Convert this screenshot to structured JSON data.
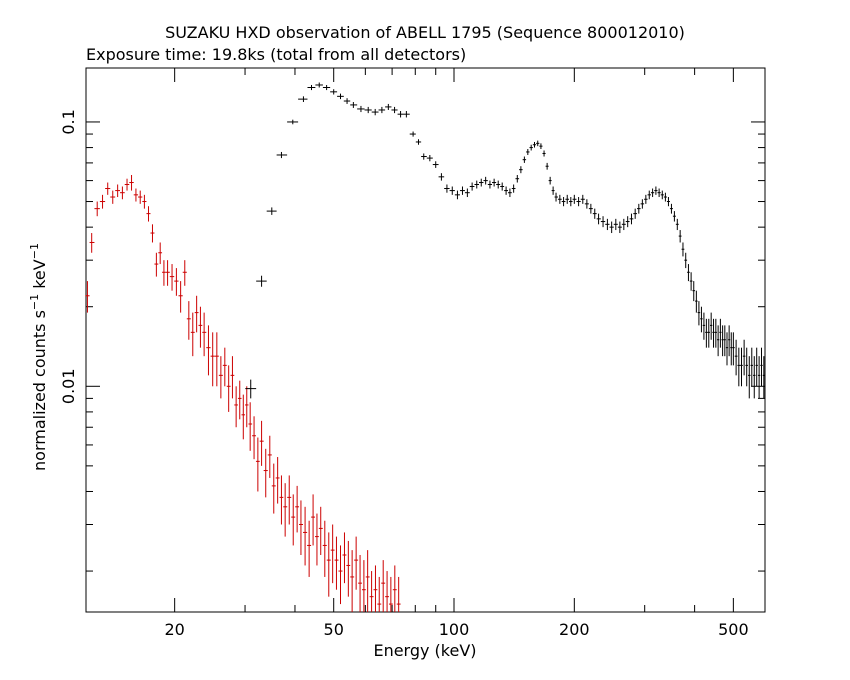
{
  "chart_data": {
    "type": "scatter",
    "title": "SUZAKU HXD observation of ABELL 1795 (Sequence 800012010)",
    "subtitle": "Exposure time: 19.8ks (total from all detectors)",
    "xlabel": "Energy (keV)",
    "ylabel_parts": [
      "normalized counts s",
      "−1",
      " keV",
      "−1"
    ],
    "x_scale": "log",
    "y_scale": "log",
    "xlim": [
      12,
      600
    ],
    "ylim": [
      0.0014,
      0.16
    ],
    "x_ticks": [
      {
        "value": 20,
        "label": "20"
      },
      {
        "value": 50,
        "label": "50"
      },
      {
        "value": 100,
        "label": "100"
      },
      {
        "value": 200,
        "label": "200"
      },
      {
        "value": 500,
        "label": "500"
      }
    ],
    "y_ticks": [
      {
        "value": 0.01,
        "label": "0.01"
      },
      {
        "value": 0.1,
        "label": "0.1"
      }
    ],
    "grid": false,
    "series": [
      {
        "color": "#cc0000",
        "points": [
          [
            12.1,
            0.022,
            0.003
          ],
          [
            12.4,
            0.035,
            0.003
          ],
          [
            12.8,
            0.047,
            0.003
          ],
          [
            13.2,
            0.05,
            0.003
          ],
          [
            13.6,
            0.056,
            0.003
          ],
          [
            14.0,
            0.052,
            0.003
          ],
          [
            14.4,
            0.055,
            0.003
          ],
          [
            14.8,
            0.054,
            0.003
          ],
          [
            15.2,
            0.058,
            0.003
          ],
          [
            15.6,
            0.059,
            0.004
          ],
          [
            16.0,
            0.053,
            0.003
          ],
          [
            16.4,
            0.052,
            0.003
          ],
          [
            16.8,
            0.05,
            0.003
          ],
          [
            17.2,
            0.045,
            0.003
          ],
          [
            17.6,
            0.038,
            0.003
          ],
          [
            18.0,
            0.029,
            0.003
          ],
          [
            18.4,
            0.032,
            0.003
          ],
          [
            18.8,
            0.027,
            0.003
          ],
          [
            19.2,
            0.027,
            0.003
          ],
          [
            19.7,
            0.026,
            0.003
          ],
          [
            20.2,
            0.025,
            0.003
          ],
          [
            20.7,
            0.022,
            0.003
          ],
          [
            21.2,
            0.027,
            0.003
          ],
          [
            21.7,
            0.018,
            0.003
          ],
          [
            22.2,
            0.016,
            0.003
          ],
          [
            22.7,
            0.019,
            0.003
          ],
          [
            23.2,
            0.017,
            0.003
          ],
          [
            23.7,
            0.016,
            0.003
          ],
          [
            24.3,
            0.014,
            0.003
          ],
          [
            24.9,
            0.013,
            0.003
          ],
          [
            25.5,
            0.013,
            0.003
          ],
          [
            26.1,
            0.011,
            0.002
          ],
          [
            26.7,
            0.012,
            0.002
          ],
          [
            27.3,
            0.01,
            0.002
          ],
          [
            27.9,
            0.011,
            0.002
          ],
          [
            28.5,
            0.0085,
            0.0015
          ],
          [
            29.1,
            0.009,
            0.0015
          ],
          [
            29.7,
            0.0078,
            0.0015
          ],
          [
            30.3,
            0.0085,
            0.0015
          ],
          [
            30.9,
            0.0072,
            0.0015
          ],
          [
            31.6,
            0.0065,
            0.0012
          ],
          [
            32.3,
            0.0052,
            0.0012
          ],
          [
            33.0,
            0.0062,
            0.0012
          ],
          [
            33.8,
            0.0048,
            0.001
          ],
          [
            34.6,
            0.0055,
            0.001
          ],
          [
            35.4,
            0.0042,
            0.0009
          ],
          [
            36.2,
            0.0045,
            0.0009
          ],
          [
            37.0,
            0.0038,
            0.0008
          ],
          [
            37.8,
            0.0035,
            0.0008
          ],
          [
            38.7,
            0.0038,
            0.0008
          ],
          [
            39.6,
            0.0032,
            0.0007
          ],
          [
            40.5,
            0.0035,
            0.0007
          ],
          [
            41.4,
            0.003,
            0.0007
          ],
          [
            42.4,
            0.0028,
            0.0007
          ],
          [
            43.4,
            0.0025,
            0.0006
          ],
          [
            44.4,
            0.0032,
            0.0007
          ],
          [
            45.4,
            0.0027,
            0.0006
          ],
          [
            46.4,
            0.0029,
            0.0006
          ],
          [
            47.5,
            0.0025,
            0.0006
          ],
          [
            48.6,
            0.0022,
            0.0006
          ],
          [
            49.7,
            0.0024,
            0.0006
          ],
          [
            50.8,
            0.0022,
            0.0005
          ],
          [
            52.0,
            0.002,
            0.0005
          ],
          [
            53.2,
            0.0023,
            0.0005
          ],
          [
            54.4,
            0.0021,
            0.0005
          ],
          [
            55.6,
            0.0019,
            0.0005
          ],
          [
            56.9,
            0.0022,
            0.0005
          ],
          [
            58.2,
            0.0018,
            0.0005
          ],
          [
            59.5,
            0.0017,
            0.0005
          ],
          [
            60.8,
            0.0019,
            0.0005
          ],
          [
            62.2,
            0.0016,
            0.0004
          ],
          [
            63.6,
            0.0017,
            0.0004
          ],
          [
            65.0,
            0.0015,
            0.0004
          ],
          [
            66.5,
            0.0018,
            0.0004
          ],
          [
            68.0,
            0.0016,
            0.0004
          ],
          [
            69.5,
            0.0015,
            0.0004
          ],
          [
            71.1,
            0.0017,
            0.0004
          ],
          [
            72.7,
            0.0015,
            0.0004
          ]
        ]
      },
      {
        "color": "#000000",
        "points": [
          [
            31.0,
            0.0098,
            0.0008
          ],
          [
            33.0,
            0.025,
            0.0012
          ],
          [
            35.0,
            0.046,
            0.0015
          ],
          [
            37.0,
            0.075,
            0.002
          ],
          [
            39.5,
            0.1,
            0.002
          ],
          [
            42.0,
            0.122,
            0.003
          ],
          [
            44.0,
            0.135,
            0.003
          ],
          [
            46.0,
            0.138,
            0.003
          ],
          [
            48.0,
            0.135,
            0.003
          ],
          [
            50.0,
            0.13,
            0.003
          ],
          [
            52.0,
            0.125,
            0.003
          ],
          [
            54.0,
            0.12,
            0.003
          ],
          [
            56.0,
            0.116,
            0.003
          ],
          [
            58.5,
            0.112,
            0.003
          ],
          [
            61.0,
            0.111,
            0.003
          ],
          [
            63.5,
            0.109,
            0.003
          ],
          [
            66.0,
            0.111,
            0.003
          ],
          [
            68.5,
            0.114,
            0.003
          ],
          [
            71.0,
            0.111,
            0.003
          ],
          [
            73.5,
            0.107,
            0.003
          ],
          [
            76.0,
            0.107,
            0.003
          ],
          [
            79.0,
            0.09,
            0.002
          ],
          [
            81.5,
            0.084,
            0.002
          ],
          [
            84.0,
            0.074,
            0.002
          ],
          [
            87.0,
            0.073,
            0.002
          ],
          [
            90.0,
            0.069,
            0.002
          ],
          [
            93.0,
            0.062,
            0.002
          ],
          [
            96.0,
            0.056,
            0.002
          ],
          [
            99.0,
            0.055,
            0.002
          ],
          [
            102.0,
            0.053,
            0.002
          ],
          [
            105.0,
            0.055,
            0.002
          ],
          [
            108.0,
            0.054,
            0.002
          ],
          [
            111.0,
            0.057,
            0.002
          ],
          [
            114.0,
            0.058,
            0.002
          ],
          [
            117.0,
            0.059,
            0.002
          ],
          [
            120.0,
            0.06,
            0.002
          ],
          [
            123.0,
            0.058,
            0.002
          ],
          [
            126.0,
            0.059,
            0.002
          ],
          [
            129.0,
            0.058,
            0.002
          ],
          [
            132.0,
            0.057,
            0.002
          ],
          [
            135.0,
            0.055,
            0.002
          ],
          [
            138.0,
            0.054,
            0.002
          ],
          [
            141.0,
            0.056,
            0.002
          ],
          [
            144.0,
            0.061,
            0.002
          ],
          [
            147.0,
            0.066,
            0.002
          ],
          [
            150.0,
            0.072,
            0.002
          ],
          [
            153.0,
            0.077,
            0.002
          ],
          [
            156.0,
            0.08,
            0.002
          ],
          [
            159.0,
            0.082,
            0.002
          ],
          [
            162.0,
            0.083,
            0.002
          ],
          [
            165.0,
            0.081,
            0.002
          ],
          [
            168.0,
            0.076,
            0.002
          ],
          [
            171.0,
            0.068,
            0.002
          ],
          [
            174.0,
            0.06,
            0.002
          ],
          [
            177.0,
            0.055,
            0.002
          ],
          [
            180.0,
            0.052,
            0.002
          ],
          [
            184.0,
            0.051,
            0.002
          ],
          [
            188.0,
            0.05,
            0.002
          ],
          [
            192.0,
            0.051,
            0.002
          ],
          [
            196.0,
            0.05,
            0.002
          ],
          [
            200.0,
            0.051,
            0.002
          ],
          [
            205.0,
            0.05,
            0.002
          ],
          [
            210.0,
            0.051,
            0.002
          ],
          [
            215.0,
            0.049,
            0.002
          ],
          [
            220.0,
            0.047,
            0.002
          ],
          [
            225.0,
            0.045,
            0.002
          ],
          [
            230.0,
            0.043,
            0.002
          ],
          [
            236.0,
            0.042,
            0.002
          ],
          [
            242.0,
            0.041,
            0.002
          ],
          [
            248.0,
            0.04,
            0.002
          ],
          [
            254.0,
            0.041,
            0.002
          ],
          [
            260.0,
            0.04,
            0.002
          ],
          [
            266.0,
            0.041,
            0.002
          ],
          [
            272.0,
            0.042,
            0.002
          ],
          [
            278.0,
            0.043,
            0.002
          ],
          [
            284.0,
            0.045,
            0.002
          ],
          [
            290.0,
            0.047,
            0.002
          ],
          [
            296.0,
            0.049,
            0.002
          ],
          [
            302.0,
            0.051,
            0.002
          ],
          [
            308.0,
            0.053,
            0.002
          ],
          [
            314.0,
            0.054,
            0.002
          ],
          [
            320.0,
            0.055,
            0.002
          ],
          [
            326.0,
            0.054,
            0.002
          ],
          [
            332.0,
            0.053,
            0.002
          ],
          [
            338.0,
            0.052,
            0.002
          ],
          [
            344.0,
            0.05,
            0.002
          ],
          [
            350.0,
            0.047,
            0.002
          ],
          [
            356.0,
            0.044,
            0.002
          ],
          [
            362.0,
            0.041,
            0.002
          ],
          [
            368.0,
            0.037,
            0.002
          ],
          [
            374.0,
            0.033,
            0.002
          ],
          [
            380.0,
            0.03,
            0.002
          ],
          [
            386.0,
            0.027,
            0.002
          ],
          [
            392.0,
            0.025,
            0.002
          ],
          [
            398.0,
            0.023,
            0.002
          ],
          [
            404.0,
            0.021,
            0.002
          ],
          [
            410.0,
            0.019,
            0.002
          ],
          [
            416.0,
            0.018,
            0.002
          ],
          [
            422.0,
            0.017,
            0.002
          ],
          [
            428.0,
            0.016,
            0.002
          ],
          [
            434.0,
            0.016,
            0.002
          ],
          [
            440.0,
            0.017,
            0.002
          ],
          [
            446.0,
            0.016,
            0.002
          ],
          [
            452.0,
            0.016,
            0.002
          ],
          [
            458.0,
            0.015,
            0.002
          ],
          [
            464.0,
            0.016,
            0.002
          ],
          [
            470.0,
            0.015,
            0.002
          ],
          [
            476.0,
            0.015,
            0.002
          ],
          [
            482.0,
            0.014,
            0.002
          ],
          [
            488.0,
            0.015,
            0.002
          ],
          [
            494.0,
            0.014,
            0.002
          ],
          [
            500.0,
            0.014,
            0.002
          ],
          [
            508.0,
            0.013,
            0.002
          ],
          [
            516.0,
            0.012,
            0.002
          ],
          [
            524.0,
            0.012,
            0.002
          ],
          [
            532.0,
            0.013,
            0.002
          ],
          [
            540.0,
            0.012,
            0.002
          ],
          [
            548.0,
            0.011,
            0.002
          ],
          [
            556.0,
            0.012,
            0.002
          ],
          [
            564.0,
            0.011,
            0.002
          ],
          [
            572.0,
            0.012,
            0.002
          ],
          [
            580.0,
            0.011,
            0.002
          ],
          [
            588.0,
            0.012,
            0.002
          ],
          [
            596.0,
            0.011,
            0.002
          ]
        ]
      }
    ]
  }
}
